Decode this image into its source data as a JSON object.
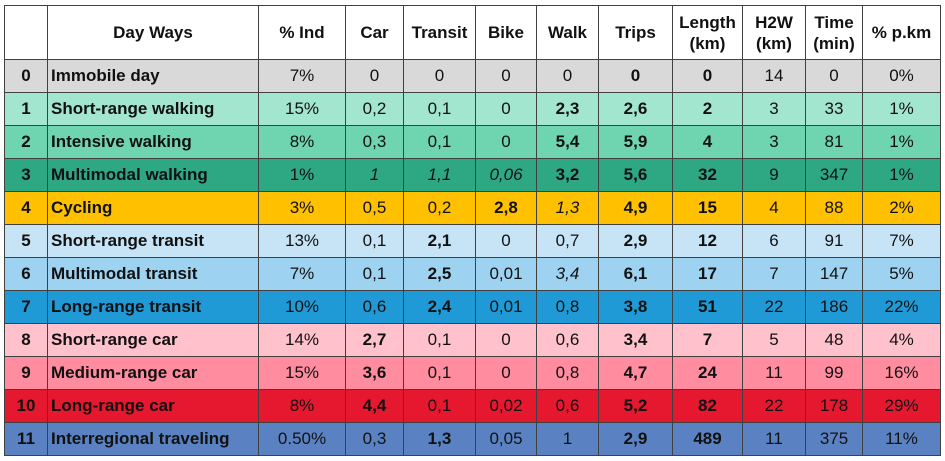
{
  "table": {
    "header": [
      "",
      "Day Ways",
      "% Ind",
      "Car",
      "Transit",
      "Bike",
      "Walk",
      "Trips",
      "Length (km)",
      "H2W (km)",
      "Time (min)",
      "% p.km"
    ],
    "rows": [
      [
        "0",
        "Immobile day",
        "7%",
        "0",
        "0",
        "0",
        "0",
        "0",
        "0",
        "14",
        "0",
        "0%"
      ],
      [
        "1",
        "Short-range walking",
        "15%",
        "0,2",
        "0,1",
        "0",
        "2,3",
        "2,6",
        "2",
        "3",
        "33",
        "1%"
      ],
      [
        "2",
        "Intensive walking",
        "8%",
        "0,3",
        "0,1",
        "0",
        "5,4",
        "5,9",
        "4",
        "3",
        "81",
        "1%"
      ],
      [
        "3",
        "Multimodal walking",
        "1%",
        "1",
        "1,1",
        "0,06",
        "3,2",
        "5,6",
        "32",
        "9",
        "347",
        "1%"
      ],
      [
        "4",
        "Cycling",
        "3%",
        "0,5",
        "0,2",
        "2,8",
        "1,3",
        "4,9",
        "15",
        "4",
        "88",
        "2%"
      ],
      [
        "5",
        "Short-range transit",
        "13%",
        "0,1",
        "2,1",
        "0",
        "0,7",
        "2,9",
        "12",
        "6",
        "91",
        "7%"
      ],
      [
        "6",
        "Multimodal transit",
        "7%",
        "0,1",
        "2,5",
        "0,01",
        "3,4",
        "6,1",
        "17",
        "7",
        "147",
        "5%"
      ],
      [
        "7",
        "Long-range transit",
        "10%",
        "0,6",
        "2,4",
        "0,01",
        "0,8",
        "3,8",
        "51",
        "22",
        "186",
        "22%"
      ],
      [
        "8",
        "Short-range car",
        "14%",
        "2,7",
        "0,1",
        "0",
        "0,6",
        "3,4",
        "7",
        "5",
        "48",
        "4%"
      ],
      [
        "9",
        "Medium-range car",
        "15%",
        "3,6",
        "0,1",
        "0",
        "0,8",
        "4,7",
        "24",
        "11",
        "99",
        "16%"
      ],
      [
        "10",
        "Long-range car",
        "8%",
        "4,4",
        "0,1",
        "0,02",
        "0,6",
        "5,2",
        "82",
        "22",
        "178",
        "29%"
      ],
      [
        "11",
        "Interregional traveling",
        "0.50%",
        "0,3",
        "1,3",
        "0,05",
        "1",
        "2,9",
        "489",
        "11",
        "375",
        "11%"
      ]
    ],
    "row_colors": [
      "#d9d9d9",
      "#a3e6cf",
      "#6fd5b0",
      "#2ea882",
      "#ffc000",
      "#c6e4f6",
      "#9dd2f0",
      "#1f9ad6",
      "#ffc2cc",
      "#ff8d9f",
      "#e5182f",
      "#5a82c2"
    ]
  }
}
